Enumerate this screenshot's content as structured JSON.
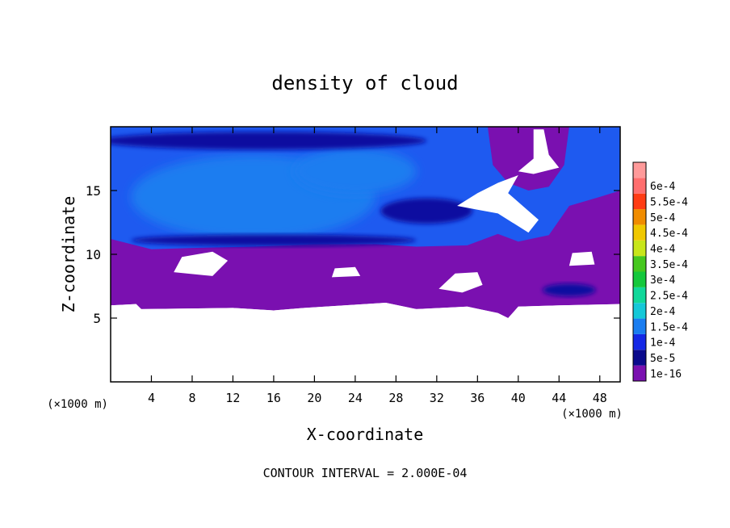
{
  "chart_data": {
    "type": "heatmap",
    "title": "density of cloud",
    "xlabel": "X-coordinate",
    "ylabel": "Z-coordinate",
    "x_unit": "(×1000 m)",
    "y_unit": "(×1000 m)",
    "xlim": [
      0,
      50
    ],
    "ylim": [
      0,
      20
    ],
    "x_ticks": [
      4,
      8,
      12,
      16,
      20,
      24,
      28,
      32,
      36,
      40,
      44,
      48
    ],
    "y_ticks": [
      5,
      10,
      15
    ],
    "footer": "CONTOUR INTERVAL = 2.000E-04",
    "colorbar": {
      "levels": [
        "1e-16",
        "5e-5",
        "1e-4",
        "1.5e-4",
        "2e-4",
        "2.5e-4",
        "3e-4",
        "3.5e-4",
        "4e-4",
        "4.5e-4",
        "5e-4",
        "5.5e-4",
        "6e-4"
      ],
      "colors": [
        "#7a10b0",
        "#0a0a8c",
        "#1428e6",
        "#1a7df0",
        "#14c8d8",
        "#10d89a",
        "#14c83c",
        "#46c81e",
        "#c8e61a",
        "#f0c800",
        "#f08c00",
        "#ff3c14",
        "#ff6e6e",
        "#ff9a9a"
      ]
    },
    "region_colors": {
      "cloud_layer": "#7a10b0",
      "upper_layer": "#1e5af0",
      "core": "#1a7df0",
      "dark_band": "#1010a0",
      "clear": "#ffffff"
    }
  }
}
